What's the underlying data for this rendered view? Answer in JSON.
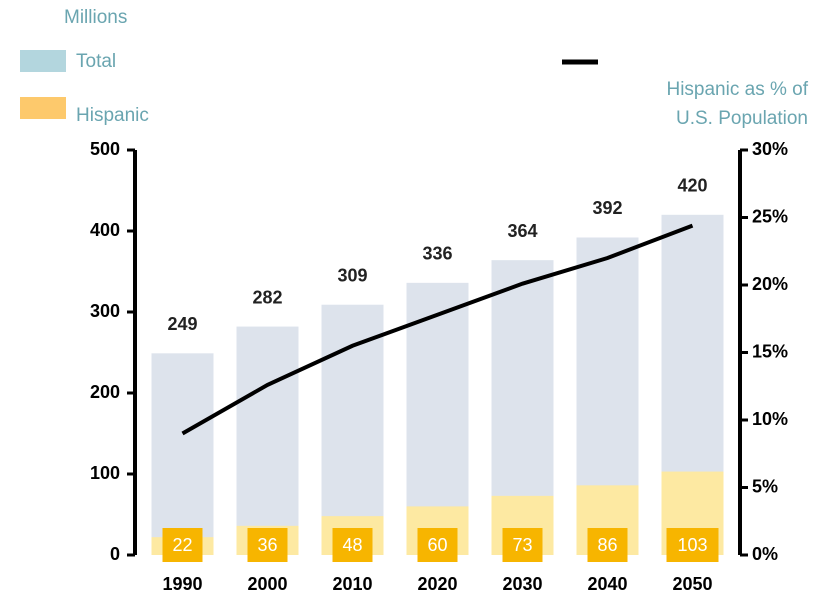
{
  "chart_data": {
    "type": "bar",
    "ylabel": "Millions",
    "y2label": [
      "Hispanic as % of",
      "U.S. Population"
    ],
    "categories": [
      "1990",
      "2000",
      "2010",
      "2020",
      "2030",
      "2040",
      "2050"
    ],
    "series": [
      {
        "name": "Total",
        "color": "#dde3ec",
        "legend_color": "#b3d6de",
        "values": [
          249,
          282,
          309,
          336,
          364,
          392,
          420
        ]
      },
      {
        "name": "Hispanic",
        "color": "#fde9a2",
        "legend_color": "#fdc96c",
        "label_color": "#f7b500",
        "values": [
          22,
          36,
          48,
          60,
          73,
          86,
          103
        ]
      },
      {
        "type": "line",
        "axis": "y2",
        "color": "#000000",
        "values": [
          9,
          12.6,
          15.5,
          17.8,
          20.1,
          22,
          24.4
        ]
      }
    ],
    "ylim": [
      0,
      500
    ],
    "yticks": [
      0,
      100,
      200,
      300,
      400,
      500
    ],
    "y2lim": [
      0,
      30
    ],
    "y2ticks": [
      {
        "value": 0,
        "label": "0%"
      },
      {
        "value": 5,
        "label": "5%"
      },
      {
        "value": 10,
        "label": "10%"
      },
      {
        "value": 15,
        "label": "15%"
      },
      {
        "value": 20,
        "label": "20%"
      },
      {
        "value": 25,
        "label": "25%"
      },
      {
        "value": 30,
        "label": "30%"
      }
    ]
  }
}
